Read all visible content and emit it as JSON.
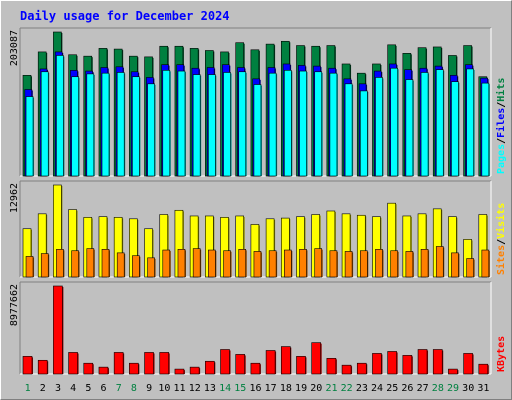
{
  "chart_data": {
    "type": "bar",
    "title": "Daily usage for December 2024",
    "categories": [
      "1",
      "2",
      "3",
      "4",
      "5",
      "6",
      "7",
      "8",
      "9",
      "10",
      "11",
      "12",
      "13",
      "14",
      "15",
      "16",
      "17",
      "18",
      "19",
      "20",
      "21",
      "22",
      "23",
      "24",
      "25",
      "26",
      "27",
      "28",
      "29",
      "30",
      "31"
    ],
    "weekend_categories": [
      "1",
      "7",
      "8",
      "14",
      "15",
      "21",
      "22",
      "28",
      "29"
    ],
    "panels": [
      {
        "id": "hits-files-pages",
        "ylabel_parts": [
          "Pages",
          "/",
          "Files",
          "/",
          "Hits"
        ],
        "ymax_label": "203087",
        "ymax": 203087,
        "series": [
          {
            "name": "Hits",
            "color": "#008040",
            "values": [
              142000,
              175000,
              203087,
              171000,
              169000,
              180000,
              179000,
              169000,
              168000,
              183000,
              183000,
              180000,
              177000,
              175000,
              188000,
              178000,
              186000,
              190000,
              184000,
              183000,
              184000,
              158000,
              145000,
              158000,
              185000,
              173000,
              181000,
              182000,
              170000,
              184000,
              140000
            ]
          },
          {
            "name": "Files",
            "color": "#0000ff",
            "values": [
              122000,
              151000,
              175000,
              149000,
              148000,
              153000,
              154000,
              147000,
              139000,
              157000,
              157000,
              152000,
              153000,
              157000,
              153000,
              137000,
              153000,
              158000,
              156000,
              155000,
              152000,
              137000,
              130000,
              148000,
              158000,
              150000,
              152000,
              155000,
              142000,
              157000,
              138000
            ]
          },
          {
            "name": "Pages",
            "color": "#00ffff",
            "values": [
              112000,
              147000,
              170000,
              140000,
              144000,
              145000,
              146000,
              140000,
              130000,
              149000,
              148000,
              143000,
              143000,
              146000,
              147000,
              129000,
              145000,
              149000,
              148000,
              147000,
              145000,
              130000,
              120000,
              139000,
              152000,
              136000,
              146000,
              150000,
              133000,
              151000,
              131000
            ]
          }
        ]
      },
      {
        "id": "visits-sites",
        "ylabel_parts": [
          "Sites",
          "/",
          "Visits"
        ],
        "ymax_label": "12962",
        "ymax": 12962,
        "series": [
          {
            "name": "Visits",
            "color": "#ffff00",
            "values": [
              6800,
              8900,
              12962,
              9500,
              8400,
              8500,
              8400,
              8200,
              6800,
              8800,
              9400,
              8600,
              8600,
              8400,
              8600,
              7400,
              8200,
              8300,
              8500,
              8800,
              9300,
              8900,
              8700,
              8500,
              10400,
              8600,
              8900,
              9600,
              8500,
              5300,
              8800
            ]
          },
          {
            "name": "Sites",
            "color": "#ff8000",
            "values": [
              2900,
              3300,
              3900,
              3700,
              4000,
              3900,
              3400,
              3000,
              2700,
              3800,
              3900,
              4000,
              3800,
              3700,
              3900,
              3600,
              3700,
              3800,
              3900,
              4000,
              3700,
              3600,
              3700,
              3900,
              3700,
              3600,
              3900,
              4300,
              3400,
              2600,
              3800
            ]
          }
        ]
      },
      {
        "id": "kbytes",
        "ylabel_parts": [
          "KBytes"
        ],
        "ymax_label": "8977662",
        "ymax": 8977662,
        "series": [
          {
            "name": "KBytes",
            "color": "#ff0000",
            "values": [
              1800000,
              1400000,
              8977662,
              2200000,
              1100000,
              700000,
              2200000,
              1100000,
              2200000,
              2200000,
              500000,
              700000,
              1300000,
              2500000,
              2000000,
              1100000,
              2400000,
              2800000,
              1800000,
              3200000,
              1600000,
              900000,
              1100000,
              2100000,
              2300000,
              1900000,
              2500000,
              2500000,
              500000,
              2100000,
              1000000
            ]
          }
        ]
      }
    ]
  }
}
